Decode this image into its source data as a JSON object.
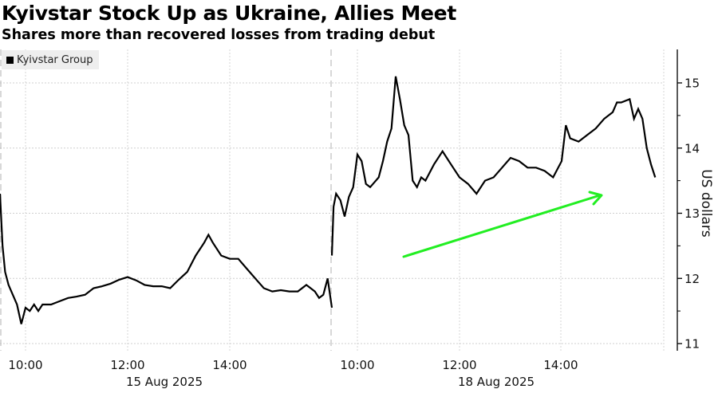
{
  "header": {
    "title": "Kyivstar Stock Up as Ukraine, Allies Meet",
    "subtitle": "Shares more than recovered losses from trading debut"
  },
  "legend": {
    "items": [
      {
        "label": "Kyivstar Group",
        "color": "#000000"
      }
    ]
  },
  "axes": {
    "y": {
      "label": "US dollars",
      "ticks": [
        "15",
        "14",
        "13",
        "12",
        "11"
      ]
    },
    "x": {
      "tick_labels": [
        "10:00",
        "12:00",
        "14:00",
        "10:00",
        "12:00",
        "14:00"
      ],
      "date_labels": [
        "15 Aug 2025",
        "18 Aug 2025"
      ]
    }
  },
  "annotation": {
    "type": "arrow",
    "color": "#22ee22",
    "direction": "up-right"
  },
  "chart_data": {
    "type": "line",
    "title": "Kyivstar Stock Up as Ukraine, Allies Meet",
    "subtitle": "Shares more than recovered losses from trading debut",
    "xlabel": "",
    "ylabel": "US dollars",
    "ylim": [
      10.93,
      15.5
    ],
    "yticks": [
      11,
      12,
      13,
      14,
      15
    ],
    "grid": true,
    "legend_position": "top-left",
    "series": [
      {
        "name": "Kyivstar Group",
        "color": "#000000",
        "sessions": [
          {
            "date": "15 Aug 2025",
            "time": [
              "09:30",
              "09:33",
              "09:36",
              "09:40",
              "09:45",
              "09:50",
              "09:55",
              "10:00",
              "10:05",
              "10:10",
              "10:15",
              "10:20",
              "10:30",
              "10:40",
              "10:50",
              "11:00",
              "11:10",
              "11:20",
              "11:30",
              "11:40",
              "11:50",
              "12:00",
              "12:10",
              "12:20",
              "12:30",
              "12:40",
              "12:50",
              "13:00",
              "13:10",
              "13:20",
              "13:30",
              "13:35",
              "13:40",
              "13:50",
              "14:00",
              "14:10",
              "14:20",
              "14:30",
              "14:40",
              "14:50",
              "15:00",
              "15:10",
              "15:20",
              "15:30",
              "15:40",
              "15:45",
              "15:50",
              "15:55",
              "16:00"
            ],
            "price": [
              13.3,
              12.5,
              12.1,
              11.9,
              11.75,
              11.6,
              11.3,
              11.55,
              11.5,
              11.6,
              11.5,
              11.6,
              11.6,
              11.65,
              11.7,
              11.72,
              11.75,
              11.85,
              11.88,
              11.92,
              11.98,
              12.02,
              11.97,
              11.9,
              11.88,
              11.88,
              11.85,
              11.98,
              12.1,
              12.35,
              12.55,
              12.67,
              12.55,
              12.35,
              12.3,
              12.3,
              12.15,
              12.0,
              11.85,
              11.8,
              11.82,
              11.8,
              11.8,
              11.9,
              11.8,
              11.7,
              11.75,
              12.0,
              11.55
            ]
          },
          {
            "date": "18 Aug 2025",
            "time": [
              "09:30",
              "09:32",
              "09:35",
              "09:40",
              "09:45",
              "09:50",
              "09:55",
              "10:00",
              "10:05",
              "10:10",
              "10:15",
              "10:25",
              "10:30",
              "10:35",
              "10:40",
              "10:45",
              "10:50",
              "10:55",
              "11:00",
              "11:05",
              "11:10",
              "11:15",
              "11:20",
              "11:30",
              "11:40",
              "11:45",
              "11:50",
              "12:00",
              "12:10",
              "12:20",
              "12:30",
              "12:40",
              "12:50",
              "13:00",
              "13:10",
              "13:20",
              "13:30",
              "13:40",
              "13:50",
              "14:00",
              "14:05",
              "14:10",
              "14:20",
              "14:30",
              "14:40",
              "14:50",
              "15:00",
              "15:05",
              "15:10",
              "15:20",
              "15:25",
              "15:30",
              "15:35",
              "15:40",
              "15:45",
              "15:50"
            ],
            "price": [
              12.35,
              13.1,
              13.3,
              13.2,
              12.95,
              13.25,
              13.4,
              13.9,
              13.8,
              13.45,
              13.4,
              13.55,
              13.8,
              14.1,
              14.3,
              15.1,
              14.75,
              14.35,
              14.2,
              13.5,
              13.4,
              13.55,
              13.5,
              13.75,
              13.95,
              13.85,
              13.75,
              13.55,
              13.45,
              13.3,
              13.5,
              13.55,
              13.7,
              13.85,
              13.8,
              13.7,
              13.7,
              13.65,
              13.55,
              13.8,
              14.35,
              14.15,
              14.1,
              14.2,
              14.3,
              14.45,
              14.55,
              14.7,
              14.7,
              14.75,
              14.45,
              14.6,
              14.45,
              14.0,
              13.75,
              13.55
            ]
          }
        ]
      }
    ]
  }
}
